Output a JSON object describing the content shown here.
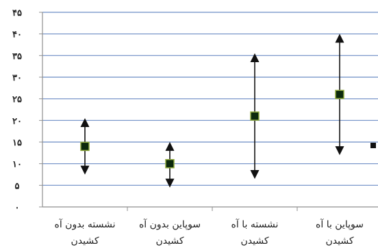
{
  "chart_data": {
    "type": "scatter",
    "subtype": "range-with-mean",
    "title": "",
    "xlabel": "",
    "ylabel": "",
    "ylim": [
      0,
      45
    ],
    "y_ticks": [
      "۴۵",
      "۴۰",
      "۳۵",
      "۳۰",
      "۲۵",
      "۲۰",
      "۱۵",
      "۱۰",
      "۵",
      "۰"
    ],
    "y_tick_values": [
      45,
      40,
      35,
      30,
      25,
      20,
      15,
      10,
      5,
      0
    ],
    "grid": true,
    "categories": [
      [
        "نشسته بدون آه",
        "کشیدن"
      ],
      [
        "سوپاین بدون آه",
        "کشیدن"
      ],
      [
        "نشسته با آه",
        "کشیدن"
      ],
      [
        "سوپاین با آه",
        "کشیدن"
      ]
    ],
    "points": [
      {
        "mean": 14,
        "low": 8.5,
        "high": 19.5
      },
      {
        "mean": 10,
        "low": 5.5,
        "high": 14
      },
      {
        "mean": 21,
        "low": 7.5,
        "high": 34.5
      },
      {
        "mean": 26,
        "low": 13,
        "high": 39
      }
    ],
    "legend": {
      "placement": "right",
      "marker": "square"
    },
    "colors": {
      "marker_fill": "#0d2a0d",
      "marker_border": "#8faa3c",
      "grid": "#6b8cc4",
      "axis": "#8f8f8f"
    }
  }
}
